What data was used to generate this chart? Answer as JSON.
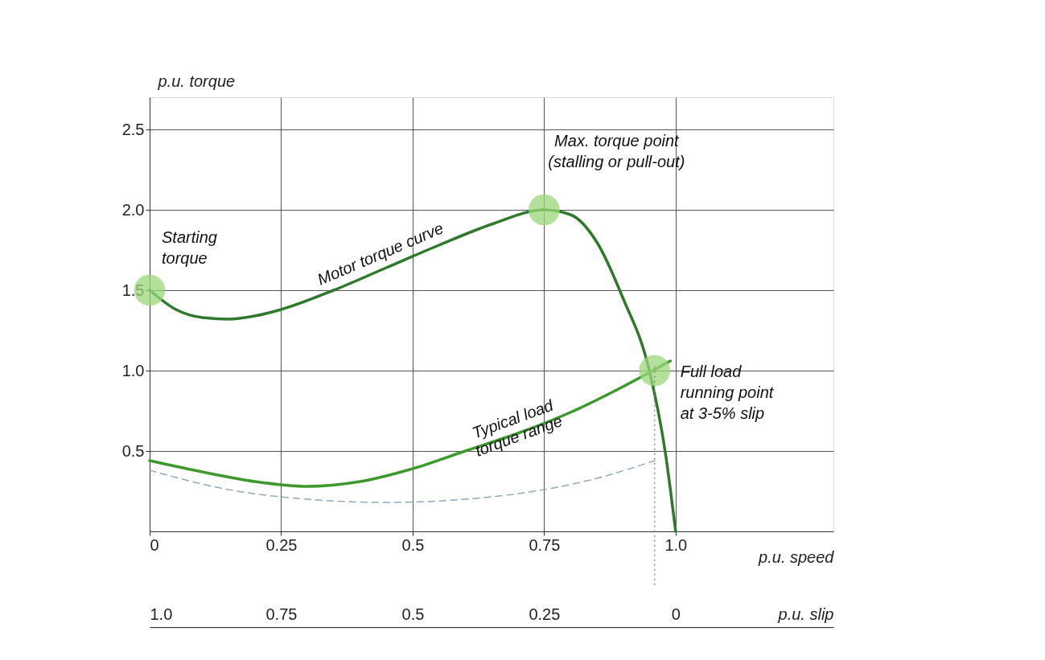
{
  "chart_data": {
    "type": "line",
    "xlabel": "p.u. speed",
    "ylabel": "p.u. torque",
    "x2label": "p.u. slip",
    "xlim": [
      0,
      1.3
    ],
    "xticks": [
      0,
      0.25,
      0.5,
      0.75,
      {
        "value": 1,
        "label": "1.0"
      }
    ],
    "x2lim": [
      1,
      -0.3
    ],
    "x2ticks": [
      {
        "value": 1,
        "label": "1.0"
      },
      0.75,
      0.5,
      0.25,
      0
    ],
    "ylim": [
      0,
      2.7
    ],
    "yticks": [
      0.5,
      {
        "value": 1,
        "label": "1.0"
      },
      1.5,
      {
        "value": 2,
        "label": "2.0"
      },
      2.5
    ],
    "grid": true,
    "series": [
      {
        "name": "Motor torque curve",
        "color": "#2e7a2a",
        "line_style": "solid",
        "x": [
          0,
          0.05,
          0.1,
          0.15,
          0.2,
          0.25,
          0.35,
          0.45,
          0.55,
          0.65,
          0.75,
          0.8,
          0.85,
          0.9,
          0.95,
          0.98,
          1.0
        ],
        "values": [
          1.5,
          1.38,
          1.33,
          1.32,
          1.34,
          1.38,
          1.5,
          1.64,
          1.78,
          1.91,
          2.0,
          1.97,
          1.8,
          1.45,
          1.0,
          0.5,
          0
        ]
      },
      {
        "name": "Typical load\ntorque range",
        "color": "#3c9a2c",
        "line_style": "solid",
        "x": [
          0,
          0.1,
          0.2,
          0.3,
          0.4,
          0.5,
          0.6,
          0.7,
          0.8,
          0.9,
          0.99
        ],
        "values": [
          0.44,
          0.37,
          0.31,
          0.28,
          0.31,
          0.39,
          0.5,
          0.61,
          0.74,
          0.9,
          1.06
        ]
      },
      {
        "color": "#8fa9b8",
        "line_style": "dashed",
        "x": [
          0,
          0.15,
          0.3,
          0.45,
          0.6,
          0.75,
          0.85,
          0.96
        ],
        "values": [
          0.38,
          0.26,
          0.2,
          0.18,
          0.2,
          0.26,
          0.33,
          0.44
        ]
      },
      {
        "color": "#9ad77a",
        "type": "scatter",
        "marker": "circle",
        "x": [
          0,
          0.75,
          0.96
        ],
        "values": [
          1.5,
          2.0,
          1.0
        ]
      }
    ],
    "ref_lines": [
      {
        "axis": "x",
        "value": 0.96,
        "line_style": "dotted",
        "color": "#888888"
      }
    ],
    "annotations": [
      {
        "text": "Starting\ntorque",
        "x": 0,
        "y": 1.5
      },
      {
        "text": "Max. torque point\n(stalling or pull-out)",
        "x": 0.75,
        "y": 2.0
      },
      {
        "text": "Full load\nrunning point\nat 3-5% slip",
        "x": 0.96,
        "y": 1.0
      }
    ]
  }
}
